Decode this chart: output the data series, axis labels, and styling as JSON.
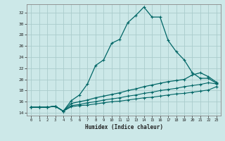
{
  "xlabel": "Humidex (Indice chaleur)",
  "bg_color": "#cce8e8",
  "grid_color": "#aacccc",
  "line_color": "#006666",
  "xlim": [
    -0.5,
    23.5
  ],
  "ylim": [
    13.5,
    33.5
  ],
  "xticks": [
    0,
    1,
    2,
    3,
    4,
    5,
    6,
    7,
    8,
    9,
    10,
    11,
    12,
    13,
    14,
    15,
    16,
    17,
    18,
    19,
    20,
    21,
    22,
    23
  ],
  "yticks": [
    14,
    16,
    18,
    20,
    22,
    24,
    26,
    28,
    30,
    32
  ],
  "line1_x": [
    0,
    1,
    2,
    3,
    4,
    5,
    6,
    7,
    8,
    9,
    10,
    11,
    12,
    13,
    14,
    15,
    16,
    17,
    18,
    19,
    20,
    21,
    22,
    23
  ],
  "line1_y": [
    15.0,
    15.0,
    15.0,
    15.2,
    14.3,
    16.2,
    17.2,
    19.2,
    22.5,
    23.5,
    26.5,
    27.2,
    30.2,
    31.5,
    33.0,
    31.2,
    31.2,
    27.0,
    25.0,
    23.5,
    21.2,
    20.2,
    20.2,
    19.3
  ],
  "line2_x": [
    0,
    1,
    2,
    3,
    4,
    5,
    6,
    7,
    8,
    9,
    10,
    11,
    12,
    13,
    14,
    15,
    16,
    17,
    18,
    19,
    20,
    21,
    22,
    23
  ],
  "line2_y": [
    15.0,
    15.0,
    15.0,
    15.2,
    14.3,
    15.7,
    16.0,
    16.3,
    16.7,
    17.0,
    17.3,
    17.6,
    18.0,
    18.3,
    18.7,
    19.0,
    19.3,
    19.6,
    19.8,
    20.0,
    20.8,
    21.2,
    20.5,
    19.5
  ],
  "line3_x": [
    0,
    1,
    2,
    3,
    4,
    5,
    6,
    7,
    8,
    9,
    10,
    11,
    12,
    13,
    14,
    15,
    16,
    17,
    18,
    19,
    20,
    21,
    22,
    23
  ],
  "line3_y": [
    15.0,
    15.0,
    15.0,
    15.2,
    14.3,
    15.3,
    15.5,
    15.8,
    16.0,
    16.3,
    16.5,
    16.7,
    17.0,
    17.2,
    17.5,
    17.7,
    18.0,
    18.2,
    18.4,
    18.7,
    18.9,
    19.1,
    19.4,
    19.2
  ],
  "line4_x": [
    0,
    1,
    2,
    3,
    4,
    5,
    6,
    7,
    8,
    9,
    10,
    11,
    12,
    13,
    14,
    15,
    16,
    17,
    18,
    19,
    20,
    21,
    22,
    23
  ],
  "line4_y": [
    15.0,
    15.0,
    15.0,
    15.2,
    14.3,
    15.1,
    15.3,
    15.4,
    15.6,
    15.8,
    16.0,
    16.1,
    16.3,
    16.5,
    16.7,
    16.8,
    17.0,
    17.2,
    17.4,
    17.5,
    17.7,
    17.9,
    18.1,
    18.7
  ]
}
